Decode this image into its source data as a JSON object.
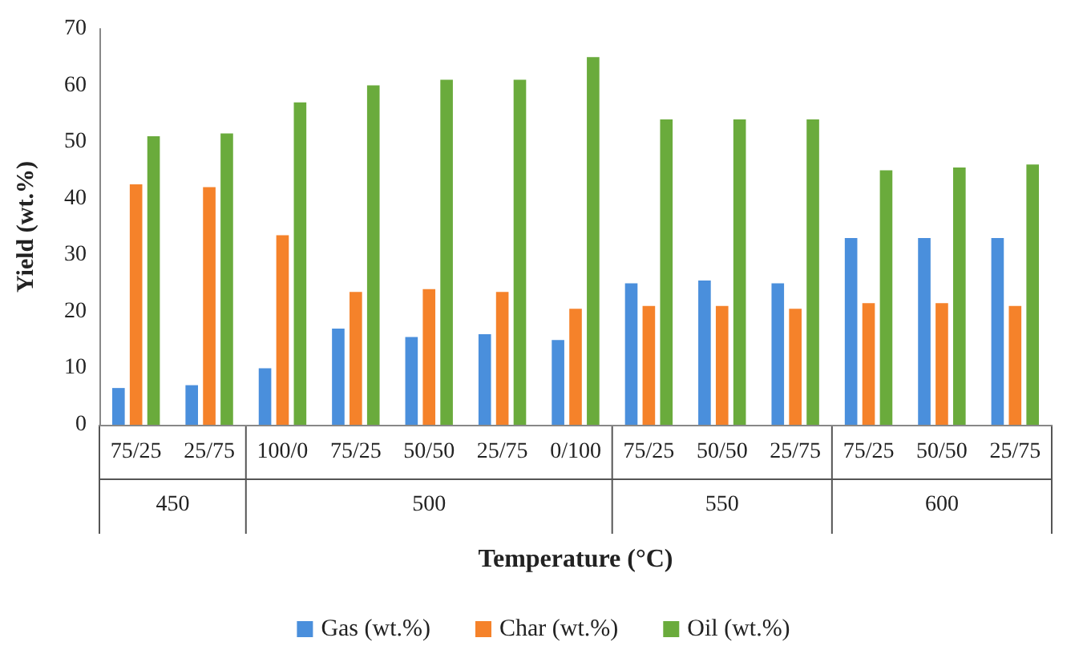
{
  "chart_data": {
    "type": "bar",
    "categories": [
      "75/25",
      "25/75",
      "100/0",
      "75/25",
      "50/50",
      "25/75",
      "0/100",
      "75/25",
      "50/50",
      "25/75",
      "75/25",
      "50/50",
      "25/75"
    ],
    "series": [
      {
        "name": "Gas (wt.%)",
        "color": "#4a8fdc",
        "values": [
          6.5,
          7,
          10,
          17,
          15.5,
          16,
          15,
          25,
          25.5,
          25,
          33,
          33,
          33
        ]
      },
      {
        "name": "Char (wt.%)",
        "color": "#f5822a",
        "values": [
          42.5,
          42,
          33.5,
          23.5,
          24,
          23.5,
          20.5,
          21,
          21,
          20.5,
          21.5,
          21.5,
          21
        ]
      },
      {
        "name": "Oil (wt.%)",
        "color": "#6aab3c",
        "values": [
          51,
          51.5,
          57,
          60,
          61,
          61,
          65,
          54,
          54,
          54,
          45,
          45.5,
          46
        ]
      }
    ],
    "xlabel": "Temperature (°C)",
    "ylabel": "Yield (wt.%)",
    "annotations": [
      "450",
      "500",
      "550",
      "600"
    ],
    "ylim": [
      0,
      70
    ],
    "yticks": [
      0,
      10,
      20,
      30,
      40,
      50,
      60,
      70
    ],
    "grid": false,
    "legend": "bottom"
  }
}
